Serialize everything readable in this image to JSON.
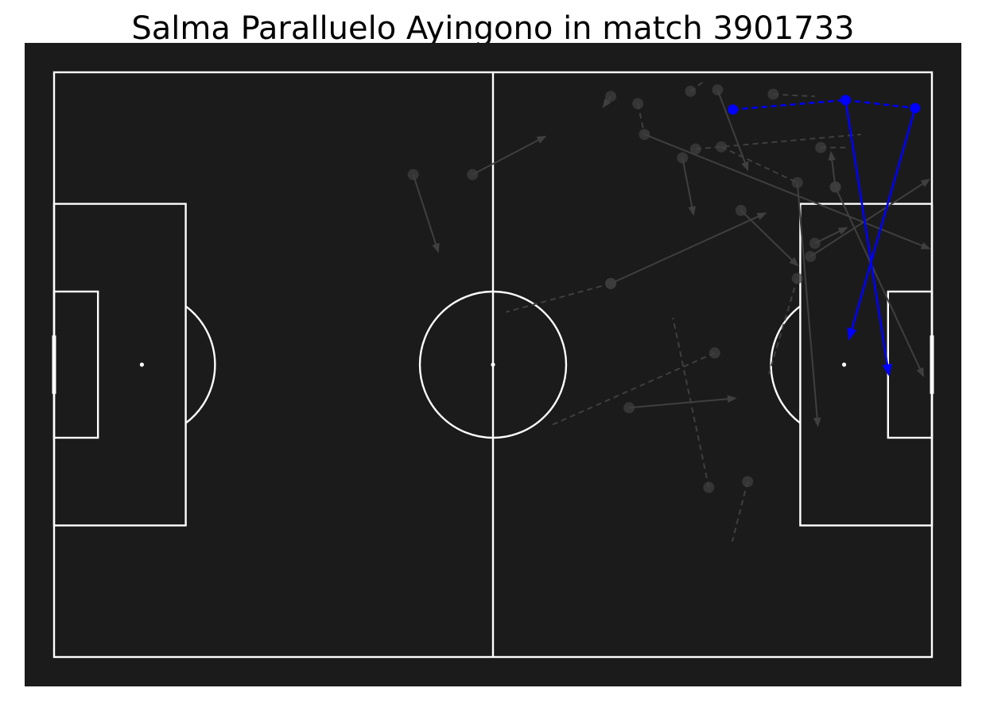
{
  "title": "Salma Paralluelo Ayingono in match 3901733",
  "colors": {
    "pitch": "#1b1b1b",
    "lines": "#ffffff",
    "other_actions": "#3f3f3f",
    "highlight": "#0000ff"
  },
  "chart_data": {
    "type": "scatter",
    "pitch": {
      "length": 120,
      "width": 80
    },
    "legend": "none",
    "highlighted_actions": [
      {
        "kind": "pass",
        "x": 117.7,
        "y": 4.9,
        "end_x": 108.7,
        "end_y": 36.4
      },
      {
        "kind": "pass",
        "x": 108.2,
        "y": 3.8,
        "end_x": 114.1,
        "end_y": 41.3
      },
      {
        "kind": "carry",
        "x": 108.2,
        "y": 3.8,
        "end_x": 117.7,
        "end_y": 4.9
      },
      {
        "kind": "carry",
        "x": 92.8,
        "y": 5.1,
        "end_x": 108.2,
        "end_y": 3.8
      }
    ],
    "other_actions": [
      {
        "kind": "pass",
        "x": 49.1,
        "y": 14.0,
        "end_x": 52.5,
        "end_y": 24.5
      },
      {
        "kind": "pass",
        "x": 57.2,
        "y": 14.0,
        "end_x": 67.1,
        "end_y": 8.8
      },
      {
        "kind": "pass",
        "x": 76.1,
        "y": 3.3,
        "end_x": 75.1,
        "end_y": 4.7
      },
      {
        "kind": "pass",
        "x": 80.7,
        "y": 8.5,
        "end_x": 119.6,
        "end_y": 24.1
      },
      {
        "kind": "pass",
        "x": 85.9,
        "y": 11.7,
        "end_x": 87.4,
        "end_y": 19.4
      },
      {
        "kind": "pass",
        "x": 90.7,
        "y": 2.4,
        "end_x": 94.8,
        "end_y": 13.3
      },
      {
        "kind": "pass",
        "x": 93.9,
        "y": 18.9,
        "end_x": 101.6,
        "end_y": 26.4
      },
      {
        "kind": "pass",
        "x": 101.6,
        "y": 15.1,
        "end_x": 104.4,
        "end_y": 48.3
      },
      {
        "kind": "pass",
        "x": 106.8,
        "y": 15.7,
        "end_x": 118.8,
        "end_y": 41.5
      },
      {
        "kind": "pass",
        "x": 106.8,
        "y": 15.7,
        "end_x": 106.2,
        "end_y": 11.0
      },
      {
        "kind": "pass",
        "x": 104.0,
        "y": 23.4,
        "end_x": 108.3,
        "end_y": 21.3
      },
      {
        "kind": "pass",
        "x": 103.4,
        "y": 25.2,
        "end_x": 119.6,
        "end_y": 14.7
      },
      {
        "kind": "pass",
        "x": 76.1,
        "y": 28.9,
        "end_x": 97.2,
        "end_y": 19.3
      },
      {
        "kind": "pass",
        "x": 78.6,
        "y": 45.9,
        "end_x": 93.1,
        "end_y": 44.6
      },
      {
        "kind": "carry",
        "x": 79.8,
        "y": 4.3,
        "end_x": 80.7,
        "end_y": 8.5
      },
      {
        "kind": "carry",
        "x": 87.0,
        "y": 2.6,
        "end_x": 88.6,
        "end_y": 1.4
      },
      {
        "kind": "carry",
        "x": 87.7,
        "y": 10.5,
        "end_x": 110.3,
        "end_y": 8.5
      },
      {
        "kind": "carry",
        "x": 91.2,
        "y": 10.2,
        "end_x": 101.6,
        "end_y": 15.1
      },
      {
        "kind": "carry",
        "x": 98.3,
        "y": 3.0,
        "end_x": 104.0,
        "end_y": 3.3
      },
      {
        "kind": "carry",
        "x": 104.8,
        "y": 10.3,
        "end_x": 108.2,
        "end_y": 10.3
      },
      {
        "kind": "carry",
        "x": 90.3,
        "y": 38.4,
        "end_x": 67.7,
        "end_y": 48.4
      },
      {
        "kind": "carry",
        "x": 94.8,
        "y": 56.0,
        "end_x": 92.7,
        "end_y": 64.2
      },
      {
        "kind": "carry",
        "x": 101.6,
        "y": 28.2,
        "end_x": 97.7,
        "end_y": 41.3
      },
      {
        "kind": "carry",
        "x": 76.1,
        "y": 28.9,
        "end_x": 61.8,
        "end_y": 32.8
      },
      {
        "kind": "carry",
        "x": 89.5,
        "y": 56.8,
        "end_x": 84.6,
        "end_y": 33.6
      }
    ]
  }
}
